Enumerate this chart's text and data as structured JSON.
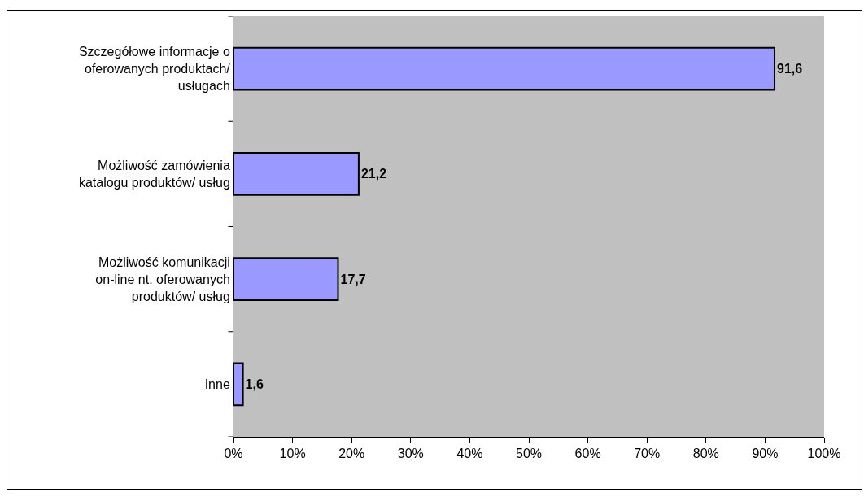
{
  "chart_data": {
    "type": "bar",
    "orientation": "horizontal",
    "categories": [
      "Szczegółowe informacje o oferowanych produktach/ usługach",
      "Możliwość zamówienia katalogu produktów/ usług",
      "Możliwość komunikacji on-line nt. oferowanych produktów/ usług",
      "Inne"
    ],
    "values": [
      91.6,
      21.2,
      17.7,
      1.6
    ],
    "value_labels": [
      "91,6",
      "21,2",
      "17,7",
      "1,6"
    ],
    "color": "#9999ff",
    "xlim": [
      0,
      100
    ],
    "xticks": [
      {
        "value": 0,
        "label": "0%"
      },
      {
        "value": 10,
        "label": "10%"
      },
      {
        "value": 20,
        "label": "20%"
      },
      {
        "value": 30,
        "label": "30%"
      },
      {
        "value": 40,
        "label": "40%"
      },
      {
        "value": 50,
        "label": "50%"
      },
      {
        "value": 60,
        "label": "60%"
      },
      {
        "value": 70,
        "label": "70%"
      },
      {
        "value": 80,
        "label": "80%"
      },
      {
        "value": 90,
        "label": "90%"
      },
      {
        "value": 100,
        "label": "100%"
      }
    ],
    "grid": false,
    "legend": false
  }
}
